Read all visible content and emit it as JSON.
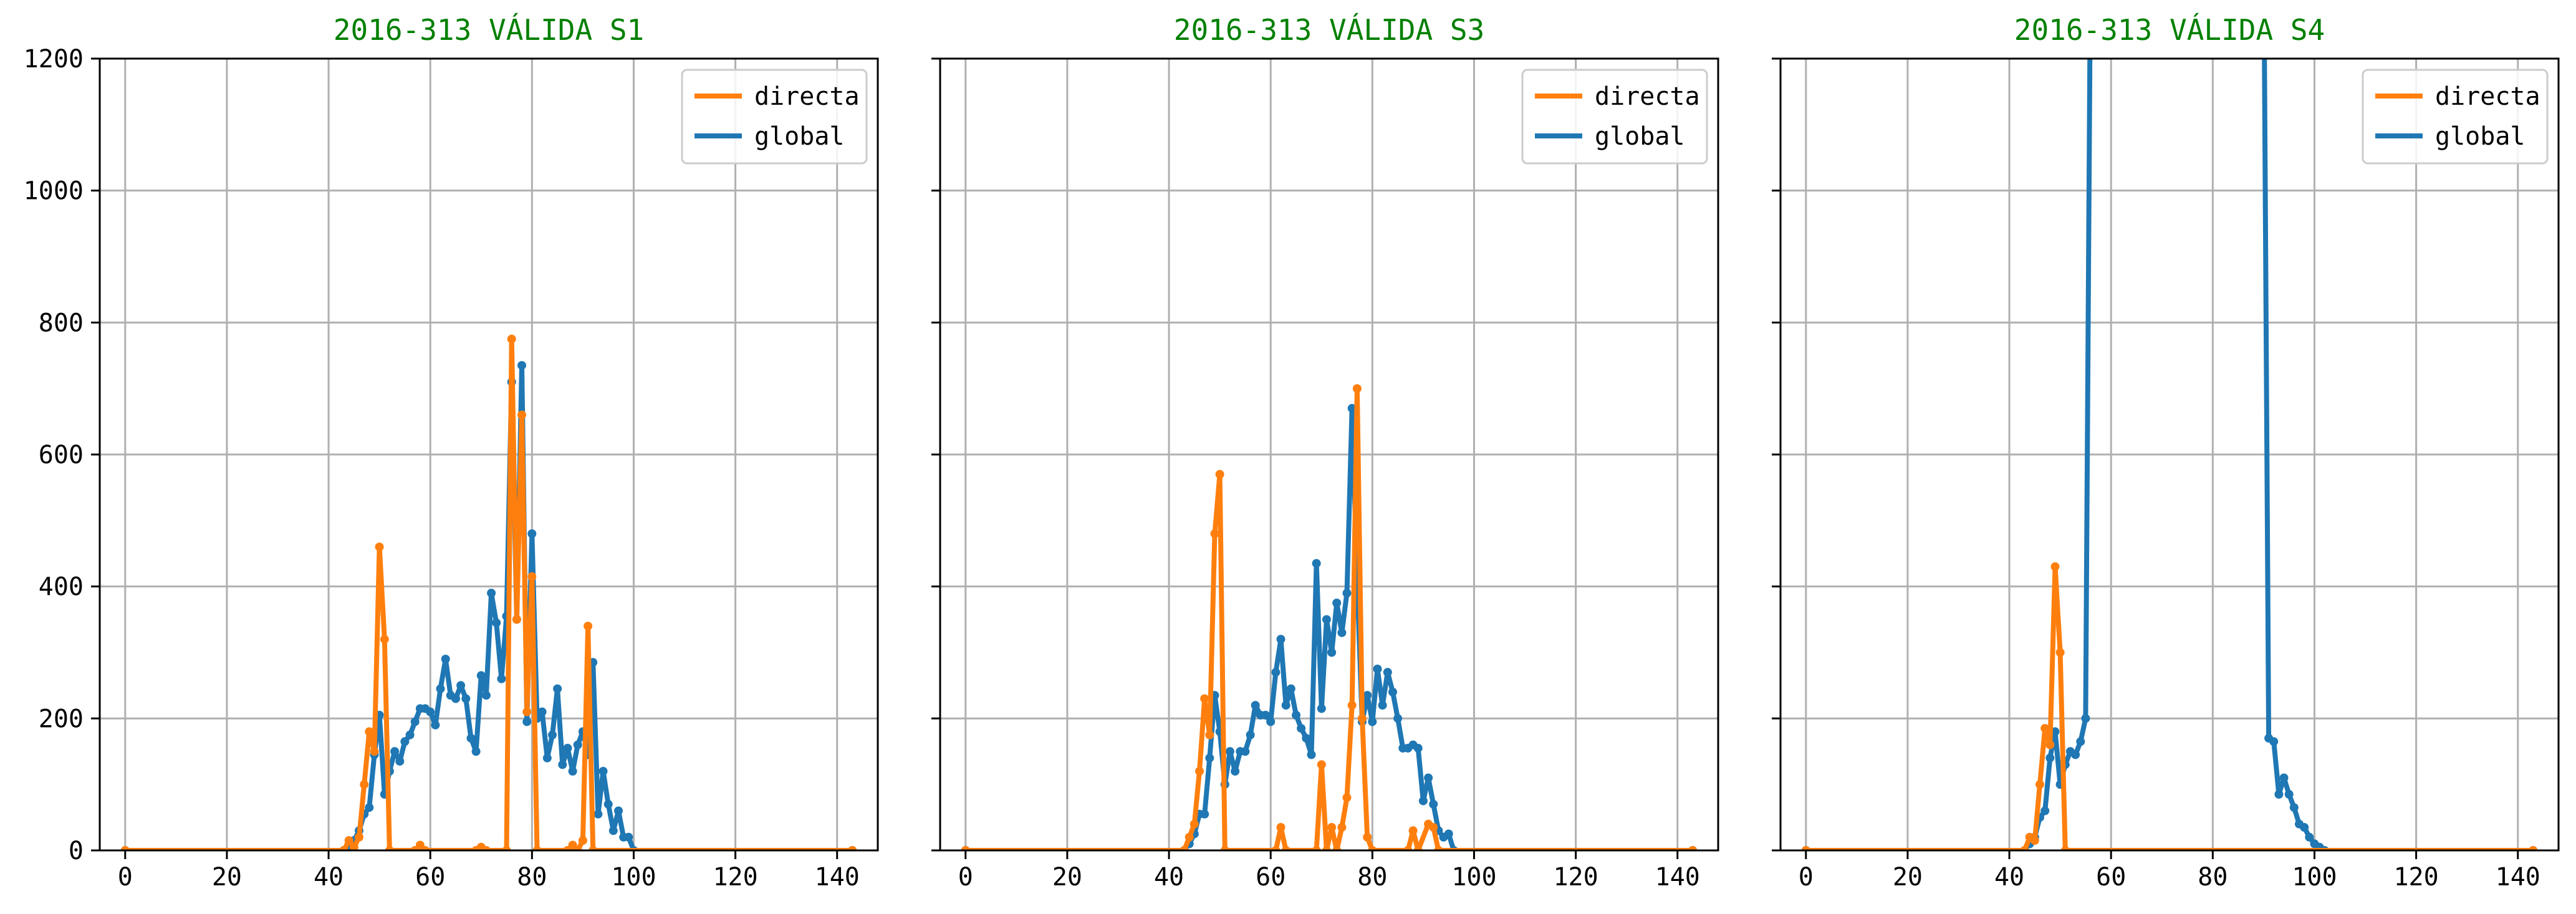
{
  "chart_data": [
    {
      "type": "line",
      "title": "2016-313 VÁLIDA S1",
      "xlabel": "",
      "ylabel": "",
      "xlim": [
        -5,
        148
      ],
      "ylim": [
        0,
        1200
      ],
      "x_ticks": [
        0,
        20,
        40,
        60,
        80,
        100,
        120,
        140
      ],
      "y_ticks": [
        0,
        200,
        400,
        600,
        800,
        1000,
        1200
      ],
      "show_y_tick_labels": true,
      "grid": true,
      "legend": "top-right",
      "series": [
        {
          "name": "global",
          "color": "#1f77b4",
          "points": [
            [
              0,
              0
            ],
            [
              43,
              0
            ],
            [
              44,
              5
            ],
            [
              45,
              15
            ],
            [
              46,
              30
            ],
            [
              47,
              55
            ],
            [
              48,
              65
            ],
            [
              49,
              145
            ],
            [
              50,
              205
            ],
            [
              51,
              85
            ],
            [
              52,
              120
            ],
            [
              53,
              150
            ],
            [
              54,
              135
            ],
            [
              55,
              165
            ],
            [
              56,
              175
            ],
            [
              57,
              195
            ],
            [
              58,
              215
            ],
            [
              59,
              215
            ],
            [
              60,
              210
            ],
            [
              61,
              190
            ],
            [
              62,
              245
            ],
            [
              63,
              290
            ],
            [
              64,
              235
            ],
            [
              65,
              230
            ],
            [
              66,
              250
            ],
            [
              67,
              230
            ],
            [
              68,
              170
            ],
            [
              69,
              150
            ],
            [
              70,
              265
            ],
            [
              71,
              235
            ],
            [
              72,
              390
            ],
            [
              73,
              345
            ],
            [
              74,
              260
            ],
            [
              75,
              355
            ],
            [
              76,
              710
            ],
            [
              77,
              350
            ],
            [
              78,
              735
            ],
            [
              79,
              195
            ],
            [
              80,
              480
            ],
            [
              81,
              200
            ],
            [
              82,
              210
            ],
            [
              83,
              140
            ],
            [
              84,
              175
            ],
            [
              85,
              245
            ],
            [
              86,
              130
            ],
            [
              87,
              155
            ],
            [
              88,
              120
            ],
            [
              89,
              160
            ],
            [
              90,
              180
            ],
            [
              91,
              145
            ],
            [
              92,
              285
            ],
            [
              93,
              55
            ],
            [
              94,
              120
            ],
            [
              95,
              70
            ],
            [
              96,
              30
            ],
            [
              97,
              60
            ],
            [
              98,
              20
            ],
            [
              99,
              20
            ],
            [
              100,
              0
            ],
            [
              143,
              0
            ]
          ]
        },
        {
          "name": "directa",
          "color": "#ff7f0e",
          "points": [
            [
              0,
              0
            ],
            [
              43,
              0
            ],
            [
              44,
              15
            ],
            [
              45,
              5
            ],
            [
              46,
              20
            ],
            [
              47,
              100
            ],
            [
              48,
              180
            ],
            [
              49,
              150
            ],
            [
              50,
              460
            ],
            [
              51,
              320
            ],
            [
              52,
              0
            ],
            [
              57,
              0
            ],
            [
              58,
              8
            ],
            [
              59,
              0
            ],
            [
              69,
              0
            ],
            [
              70,
              5
            ],
            [
              71,
              0
            ],
            [
              75,
              0
            ],
            [
              76,
              775
            ],
            [
              77,
              350
            ],
            [
              78,
              660
            ],
            [
              79,
              210
            ],
            [
              80,
              415
            ],
            [
              81,
              0
            ],
            [
              87,
              0
            ],
            [
              88,
              8
            ],
            [
              89,
              0
            ],
            [
              90,
              15
            ],
            [
              91,
              340
            ],
            [
              92,
              0
            ],
            [
              143,
              0
            ]
          ]
        }
      ]
    },
    {
      "type": "line",
      "title": "2016-313 VÁLIDA S3",
      "xlabel": "",
      "ylabel": "",
      "xlim": [
        -5,
        148
      ],
      "ylim": [
        0,
        1200
      ],
      "x_ticks": [
        0,
        20,
        40,
        60,
        80,
        100,
        120,
        140
      ],
      "y_ticks": [
        0,
        200,
        400,
        600,
        800,
        1000,
        1200
      ],
      "show_y_tick_labels": false,
      "grid": true,
      "legend": "top-right",
      "series": [
        {
          "name": "global",
          "color": "#1f77b4",
          "points": [
            [
              0,
              0
            ],
            [
              43,
              0
            ],
            [
              44,
              10
            ],
            [
              45,
              25
            ],
            [
              46,
              55
            ],
            [
              47,
              55
            ],
            [
              48,
              140
            ],
            [
              49,
              235
            ],
            [
              50,
              180
            ],
            [
              51,
              100
            ],
            [
              52,
              150
            ],
            [
              53,
              120
            ],
            [
              54,
              150
            ],
            [
              55,
              150
            ],
            [
              56,
              175
            ],
            [
              57,
              220
            ],
            [
              58,
              205
            ],
            [
              59,
              205
            ],
            [
              60,
              195
            ],
            [
              61,
              270
            ],
            [
              62,
              320
            ],
            [
              63,
              220
            ],
            [
              64,
              245
            ],
            [
              65,
              205
            ],
            [
              66,
              185
            ],
            [
              67,
              170
            ],
            [
              68,
              145
            ],
            [
              69,
              435
            ],
            [
              70,
              215
            ],
            [
              71,
              350
            ],
            [
              72,
              300
            ],
            [
              73,
              375
            ],
            [
              74,
              330
            ],
            [
              75,
              390
            ],
            [
              76,
              670
            ],
            [
              77,
              410
            ],
            [
              78,
              195
            ],
            [
              79,
              235
            ],
            [
              80,
              195
            ],
            [
              81,
              275
            ],
            [
              82,
              220
            ],
            [
              83,
              270
            ],
            [
              84,
              240
            ],
            [
              85,
              200
            ],
            [
              86,
              155
            ],
            [
              87,
              155
            ],
            [
              88,
              160
            ],
            [
              89,
              155
            ],
            [
              90,
              75
            ],
            [
              91,
              110
            ],
            [
              92,
              70
            ],
            [
              93,
              30
            ],
            [
              94,
              20
            ],
            [
              95,
              25
            ],
            [
              96,
              0
            ],
            [
              143,
              0
            ]
          ]
        },
        {
          "name": "directa",
          "color": "#ff7f0e",
          "points": [
            [
              0,
              0
            ],
            [
              43,
              0
            ],
            [
              44,
              20
            ],
            [
              45,
              40
            ],
            [
              46,
              120
            ],
            [
              47,
              230
            ],
            [
              48,
              175
            ],
            [
              49,
              480
            ],
            [
              50,
              570
            ],
            [
              51,
              0
            ],
            [
              61,
              0
            ],
            [
              62,
              35
            ],
            [
              63,
              0
            ],
            [
              69,
              0
            ],
            [
              70,
              130
            ],
            [
              71,
              0
            ],
            [
              72,
              35
            ],
            [
              73,
              0
            ],
            [
              74,
              35
            ],
            [
              75,
              80
            ],
            [
              76,
              220
            ],
            [
              77,
              700
            ],
            [
              78,
              200
            ],
            [
              79,
              20
            ],
            [
              80,
              0
            ],
            [
              87,
              0
            ],
            [
              88,
              30
            ],
            [
              89,
              0
            ],
            [
              91,
              40
            ],
            [
              92,
              35
            ],
            [
              93,
              0
            ],
            [
              143,
              0
            ]
          ]
        }
      ]
    },
    {
      "type": "line",
      "title": "2016-313 VÁLIDA S4",
      "xlabel": "",
      "ylabel": "",
      "xlim": [
        -5,
        148
      ],
      "ylim": [
        0,
        1200
      ],
      "x_ticks": [
        0,
        20,
        40,
        60,
        80,
        100,
        120,
        140
      ],
      "y_ticks": [
        0,
        200,
        400,
        600,
        800,
        1000,
        1200
      ],
      "show_y_tick_labels": false,
      "grid": true,
      "legend": "top-right",
      "series": [
        {
          "name": "global",
          "color": "#1f77b4",
          "points": [
            [
              0,
              0
            ],
            [
              43,
              0
            ],
            [
              44,
              10
            ],
            [
              45,
              20
            ],
            [
              46,
              50
            ],
            [
              47,
              60
            ],
            [
              48,
              140
            ],
            [
              49,
              180
            ],
            [
              50,
              100
            ],
            [
              51,
              130
            ],
            [
              52,
              150
            ],
            [
              53,
              145
            ],
            [
              54,
              165
            ],
            [
              55,
              200
            ],
            [
              56,
              1400
            ],
            [
              90,
              1400
            ],
            [
              91,
              170
            ],
            [
              92,
              165
            ],
            [
              93,
              85
            ],
            [
              94,
              110
            ],
            [
              95,
              85
            ],
            [
              96,
              65
            ],
            [
              97,
              40
            ],
            [
              98,
              35
            ],
            [
              99,
              20
            ],
            [
              100,
              10
            ],
            [
              101,
              5
            ],
            [
              102,
              0
            ],
            [
              143,
              0
            ]
          ]
        },
        {
          "name": "directa",
          "color": "#ff7f0e",
          "points": [
            [
              0,
              0
            ],
            [
              43,
              0
            ],
            [
              44,
              20
            ],
            [
              45,
              15
            ],
            [
              46,
              100
            ],
            [
              47,
              185
            ],
            [
              48,
              160
            ],
            [
              49,
              430
            ],
            [
              50,
              300
            ],
            [
              51,
              0
            ],
            [
              143,
              0
            ]
          ]
        }
      ]
    }
  ]
}
